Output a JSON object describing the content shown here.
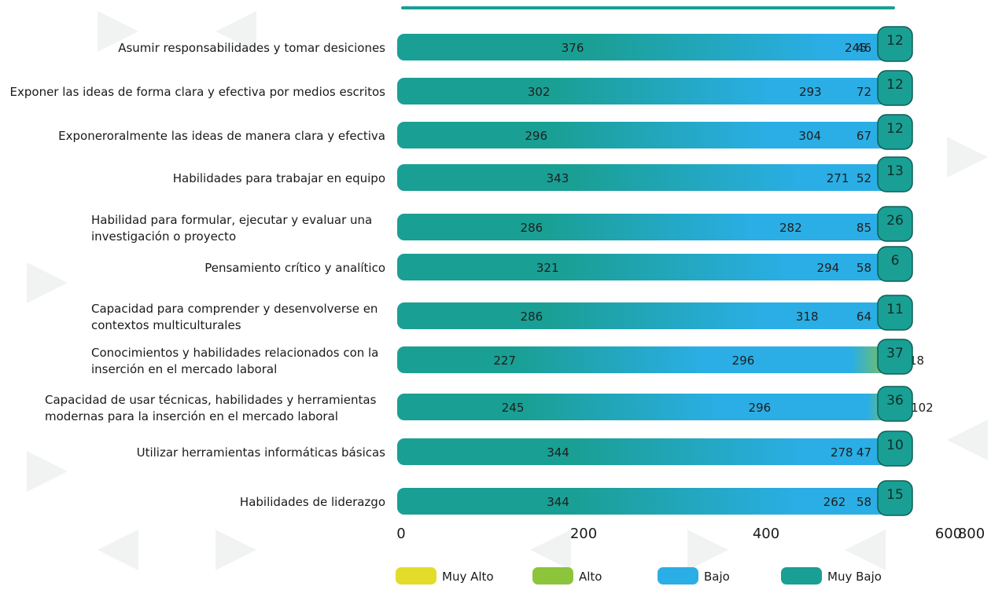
{
  "chart_data": {
    "type": "bar",
    "orientation": "horizontal",
    "stacked": true,
    "categories": [
      "Asumir responsabilidades y tomar desiciones",
      "Exponer las ideas de forma clara y efectiva por medios escritos",
      "Exponeroralmente las ideas de manera clara y efectiva",
      "Habilidades para trabajar en equipo",
      "Habilidad para formular, ejecutar y evaluar una investigación o proyecto",
      "Pensamiento crítico y analítico",
      "Capacidad para comprender y desenvolverse en contextos multiculturales",
      "Conocimientos y habilidades relacionados con la inserción en el mercado laboral",
      "Capacidad de usar técnicas, habilidades y herramientas modernas para la inserción en el mercado laboral",
      "Utilizar herramientas informáticas básicas",
      "Habilidades de liderazgo"
    ],
    "category_lines": [
      [
        "Asumir responsabilidades y tomar desiciones"
      ],
      [
        "Exponer las ideas de forma clara y efectiva por medios escritos"
      ],
      [
        "Exponeroralmente las ideas de manera clara y efectiva"
      ],
      [
        "Habilidades para trabajar en equipo"
      ],
      [
        "Habilidad para formular, ejecutar y evaluar una",
        "investigación o proyecto"
      ],
      [
        "Pensamiento crítico y analítico"
      ],
      [
        "Capacidad para comprender y desenvolverse en",
        "contextos multiculturales"
      ],
      [
        "Conocimientos y habilidades relacionados con la",
        "inserción en el mercado laboral"
      ],
      [
        "Capacidad de usar técnicas, habilidades y herramientas",
        "modernas para la inserción en el mercado laboral"
      ],
      [
        "Utilizar herramientas informáticas básicas"
      ],
      [
        "Habilidades de liderazgo"
      ]
    ],
    "series": [
      {
        "name": "Muy Bajo",
        "color": "#1a9f94",
        "values": [
          376,
          302,
          296,
          343,
          286,
          321,
          286,
          227,
          245,
          344,
          344
        ]
      },
      {
        "name": "Bajo",
        "color": "#2aaee5",
        "values": [
          245,
          293,
          304,
          271,
          282,
          294,
          318,
          296,
          296,
          278,
          262
        ]
      },
      {
        "name": "Alto",
        "color": "#8cc43c",
        "values": [
          46,
          72,
          67,
          52,
          85,
          58,
          64,
          118,
          102,
          47,
          58
        ]
      },
      {
        "name": "Muy Alto",
        "color": "#e3dc2a",
        "values": [
          12,
          12,
          12,
          13,
          26,
          6,
          11,
          37,
          36,
          10,
          15
        ]
      }
    ],
    "xlim": [
      0,
      800
    ],
    "x_ticks": [
      0,
      200,
      400,
      600,
      800
    ],
    "legend": [
      "Muy Alto",
      "Alto",
      "Bajo",
      "Muy Bajo"
    ],
    "legend_position": "bottom"
  }
}
